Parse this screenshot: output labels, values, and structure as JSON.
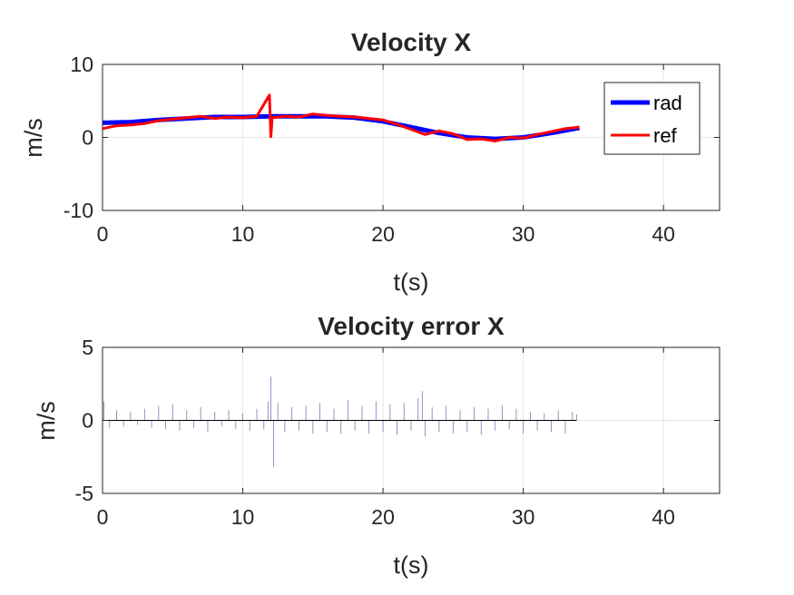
{
  "chart_data": [
    {
      "type": "line",
      "title": "Velocity X",
      "xlabel": "t(s)",
      "ylabel": "m/s",
      "xlim": [
        0,
        44
      ],
      "ylim": [
        -10,
        10
      ],
      "xticks": [
        0,
        10,
        20,
        30,
        40
      ],
      "yticks": [
        -10,
        0,
        10
      ],
      "grid": true,
      "legend": "top-right",
      "series": [
        {
          "name": "rad",
          "color": "#0000ff",
          "x": [
            0,
            2,
            4,
            6,
            8,
            10,
            12,
            14,
            16,
            18,
            20,
            22,
            24,
            26,
            28,
            30,
            32,
            34
          ],
          "values": [
            2.0,
            2.1,
            2.4,
            2.6,
            2.8,
            2.8,
            2.9,
            2.9,
            2.9,
            2.7,
            2.2,
            1.4,
            0.6,
            0.0,
            -0.2,
            0.0,
            0.6,
            1.3
          ]
        },
        {
          "name": "ref",
          "color": "#ff0000",
          "x": [
            0,
            1,
            2,
            3,
            4,
            5,
            6,
            7,
            8,
            9,
            10,
            11,
            11.9,
            12,
            12.1,
            13,
            14,
            15,
            16,
            17,
            18,
            19,
            20,
            21,
            22,
            23,
            24,
            25,
            26,
            27,
            28,
            29,
            30,
            31,
            32,
            33,
            34
          ],
          "values": [
            1.2,
            1.6,
            1.7,
            1.9,
            2.3,
            2.5,
            2.7,
            2.9,
            2.6,
            2.8,
            2.7,
            2.9,
            5.8,
            0.1,
            2.7,
            2.9,
            2.8,
            3.2,
            3.0,
            2.9,
            2.8,
            2.6,
            2.4,
            1.8,
            1.1,
            0.4,
            0.9,
            0.5,
            -0.3,
            -0.2,
            -0.5,
            0.0,
            -0.1,
            0.4,
            0.8,
            1.2,
            1.4
          ]
        }
      ]
    },
    {
      "type": "line",
      "title": "Velocity error X",
      "xlabel": "t(s)",
      "ylabel": "m/s",
      "xlim": [
        0,
        44
      ],
      "ylim": [
        -5,
        5
      ],
      "xticks": [
        0,
        10,
        20,
        30,
        40
      ],
      "yticks": [
        -5,
        0,
        5
      ],
      "grid": true,
      "series": [
        {
          "color": "#8888bb",
          "x": [
            0.1,
            0.5,
            1,
            1.5,
            2,
            2.5,
            3,
            3.5,
            4,
            4.5,
            5,
            5.5,
            6,
            6.5,
            7,
            7.5,
            8,
            8.5,
            9,
            9.5,
            10,
            10.5,
            11,
            11.5,
            11.8,
            12.0,
            12.2,
            12.5,
            13,
            13.5,
            14,
            14.5,
            15,
            15.5,
            16,
            16.5,
            17,
            17.5,
            18,
            18.5,
            19,
            19.5,
            20,
            20.5,
            21,
            21.5,
            22,
            22.5,
            22.8,
            23,
            23.5,
            24,
            24.5,
            25,
            25.5,
            26,
            26.5,
            27,
            27.5,
            28,
            28.5,
            29,
            29.5,
            30,
            30.5,
            31,
            31.5,
            32,
            32.5,
            33,
            33.5,
            33.8
          ],
          "values": [
            1.3,
            -0.5,
            0.7,
            -0.4,
            0.6,
            -0.3,
            0.8,
            -0.5,
            1.0,
            -0.6,
            1.1,
            -0.7,
            0.7,
            -0.5,
            0.9,
            -0.8,
            0.6,
            -0.4,
            0.7,
            -0.6,
            0.5,
            -0.7,
            0.8,
            -0.6,
            1.3,
            3.0,
            -3.2,
            1.2,
            -0.8,
            0.9,
            -0.7,
            1.0,
            -0.9,
            1.2,
            -0.8,
            0.8,
            -0.9,
            1.4,
            -0.7,
            1.0,
            -0.9,
            1.3,
            -0.8,
            1.1,
            -1.0,
            1.2,
            -0.7,
            1.5,
            2.0,
            -1.1,
            0.9,
            -0.8,
            1.0,
            -0.9,
            0.7,
            -0.8,
            0.9,
            -1.0,
            0.8,
            -0.7,
            1.0,
            -0.6,
            0.8,
            -0.9,
            0.6,
            -0.7,
            0.5,
            -0.8,
            0.7,
            -0.9,
            0.6,
            0.4
          ]
        }
      ]
    }
  ]
}
